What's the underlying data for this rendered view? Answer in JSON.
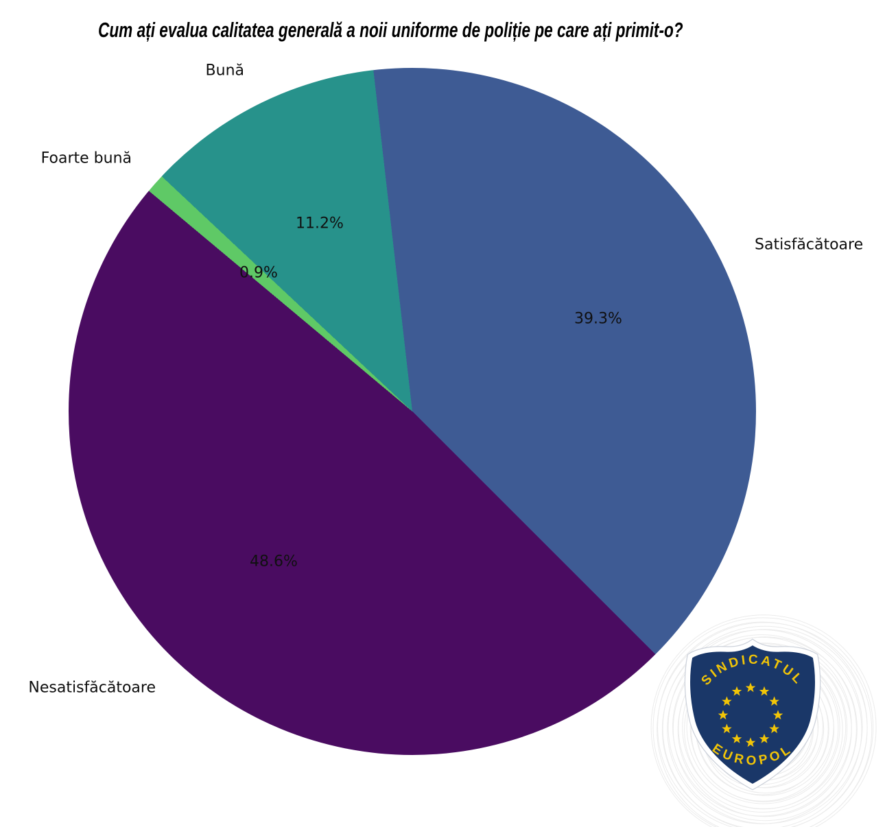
{
  "title": "Cum ați evalua calitatea generală a noii uniforme de poliție pe care ați primit-o?",
  "chart_data": {
    "type": "pie",
    "title": "Cum ați evalua calitatea generală a noii uniforme de poliție pe care ați primit-o?",
    "legend": "none",
    "rotation_deg": -6.5,
    "direction": "clockwise",
    "slices": [
      {
        "label": "Satisfăcătoare",
        "value": 39.3,
        "pct_label": "39.3%",
        "color": "#3E5B94"
      },
      {
        "label": "Nesatisfăcătoare",
        "value": 48.6,
        "pct_label": "48.6%",
        "color": "#4A0C61"
      },
      {
        "label": "Foarte bună",
        "value": 0.9,
        "pct_label": "0.9%",
        "color": "#5FC966"
      },
      {
        "label": "Bună",
        "value": 11.2,
        "pct_label": "11.2%",
        "color": "#27928B"
      }
    ]
  },
  "logo": {
    "top_text": "SINDICATUL",
    "bottom_text": "EUROPOL",
    "star_count": 12,
    "shield_color": "#1A3768",
    "star_color": "#F2C507",
    "text_color": "#F2C507"
  }
}
